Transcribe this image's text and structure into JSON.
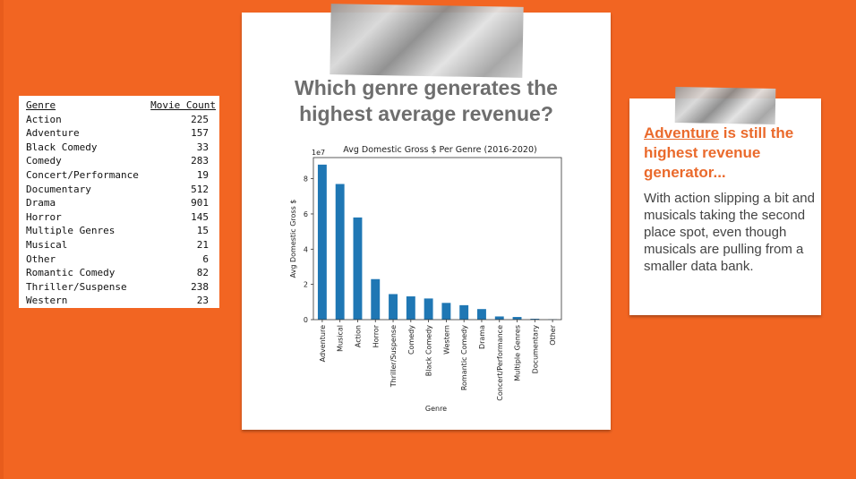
{
  "table": {
    "header": {
      "genre": "Genre",
      "count": "Movie Count"
    },
    "rows": [
      {
        "genre": "Action",
        "count": "225"
      },
      {
        "genre": "Adventure",
        "count": "157"
      },
      {
        "genre": "Black Comedy",
        "count": "33"
      },
      {
        "genre": "Comedy",
        "count": "283"
      },
      {
        "genre": "Concert/Performance",
        "count": "19"
      },
      {
        "genre": "Documentary",
        "count": "512"
      },
      {
        "genre": "Drama",
        "count": "901"
      },
      {
        "genre": "Horror",
        "count": "145"
      },
      {
        "genre": "Multiple Genres",
        "count": "15"
      },
      {
        "genre": "Musical",
        "count": "21"
      },
      {
        "genre": "Other",
        "count": "6"
      },
      {
        "genre": "Romantic Comedy",
        "count": "82"
      },
      {
        "genre": "Thriller/Suspense",
        "count": "238"
      },
      {
        "genre": "Western",
        "count": "23"
      }
    ]
  },
  "slide": {
    "title_line1": "Which genre generates the",
    "title_line2": "highest average revenue?"
  },
  "side_note": {
    "highlight": "Adventure",
    "heading_rest": " is still the highest revenue generator...",
    "body": "With action slipping a bit and musicals taking the second place spot, even though musicals are pulling from a smaller data bank."
  },
  "colors": {
    "bar": "#1F77B4",
    "background": "#F26522",
    "accent": "#EA6A2C"
  },
  "chart_data": {
    "type": "bar",
    "title": "Avg Domestic Gross $ Per Genre (2016-2020)",
    "xlabel": "Genre",
    "ylabel": "Avg Domestic Gross $",
    "scale_label": "1e7",
    "categories": [
      "Adventure",
      "Musical",
      "Action",
      "Horror",
      "Thriller/Suspense",
      "Comedy",
      "Black Comedy",
      "Western",
      "Romantic Comedy",
      "Drama",
      "Concert/Performance",
      "Multiple Genres",
      "Documentary",
      "Other"
    ],
    "values": [
      8.8,
      7.7,
      5.8,
      2.3,
      1.45,
      1.32,
      1.2,
      0.95,
      0.82,
      0.6,
      0.18,
      0.15,
      0.05,
      0.02
    ],
    "yticks": [
      0,
      2,
      4,
      6,
      8
    ],
    "ylim": [
      0,
      9.2
    ]
  }
}
